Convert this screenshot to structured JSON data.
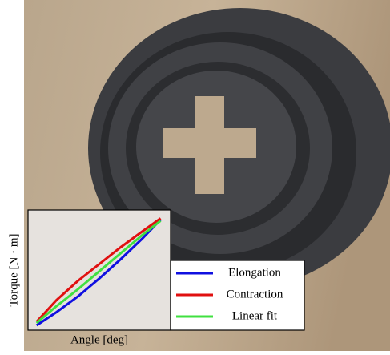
{
  "chart_data": {
    "type": "line",
    "xlabel": "Angle [deg]",
    "ylabel": "Torque [N · m]",
    "x": [
      0.06,
      0.2,
      0.35,
      0.5,
      0.65,
      0.8,
      0.93
    ],
    "xlim": [
      0,
      1
    ],
    "ylim": [
      0,
      1
    ],
    "series": [
      {
        "name": "Elongation",
        "color": "#1010e0",
        "values": [
          0.04,
          0.15,
          0.28,
          0.43,
          0.59,
          0.76,
          0.92
        ]
      },
      {
        "name": "Contraction",
        "color": "#e01010",
        "values": [
          0.07,
          0.25,
          0.41,
          0.55,
          0.69,
          0.82,
          0.93
        ]
      },
      {
        "name": "Linear fit",
        "color": "#40e040",
        "values": [
          0.06,
          0.2,
          0.34,
          0.49,
          0.64,
          0.79,
          0.91
        ]
      }
    ]
  }
}
